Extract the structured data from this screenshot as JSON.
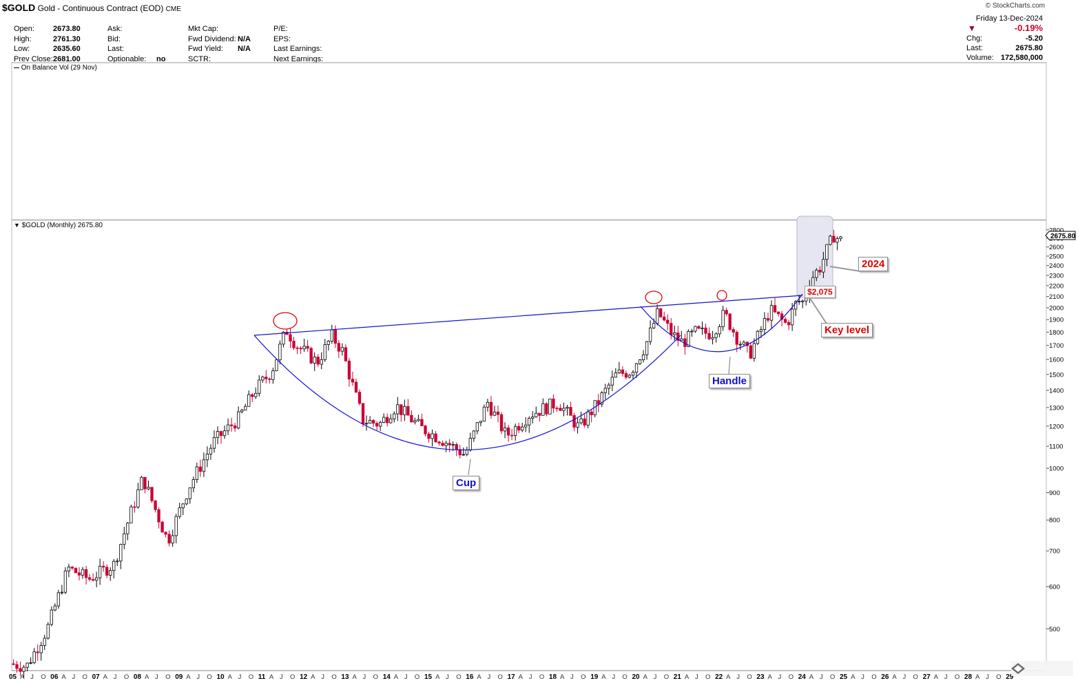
{
  "header": {
    "symbol": "$GOLD",
    "title": "Gold - Continuous Contract (EOD)",
    "exchange": "CME",
    "brand": "© StockCharts.com"
  },
  "quote": {
    "open_label": "Open:",
    "open": "2673.80",
    "high_label": "High:",
    "high": "2761.30",
    "low_label": "Low:",
    "low": "2635.60",
    "prev_label": "Prev Close:",
    "prev": "2681.00",
    "ask_label": "Ask:",
    "bid_label": "Bid:",
    "last_label": "Last:",
    "optionable_label": "Optionable:",
    "optionable": "no",
    "mktcap_label": "Mkt Cap:",
    "fwddiv_label": "Fwd Dividend:",
    "fwddiv": "N/A",
    "fwdyield_label": "Fwd Yield:",
    "fwdyield": "N/A",
    "sctr_label": "SCTR:",
    "pe_label": "P/E:",
    "eps_label": "EPS:",
    "lastearn_label": "Last Earnings:",
    "nextearn_label": "Next Earnings:"
  },
  "summary": {
    "date": "Friday  13-Dec-2024",
    "pct_change": "-0.19%",
    "chg_label": "Chg:",
    "chg": "-5.20",
    "last_label": "Last:",
    "last": "2675.80",
    "volume_label": "Volume:",
    "volume": "172,580,000",
    "down_color": "#b0002a"
  },
  "panels": {
    "obv_label": "On Balance Vol (29 Nov)",
    "price_label": "$GOLD (Monthly) 2675.80",
    "last_tag": "2675.80"
  },
  "chart_data": {
    "type": "candlestick",
    "title": "$GOLD (Monthly)",
    "scale": "log",
    "ylim": [
      420,
      2900
    ],
    "y_ticks": [
      500,
      600,
      700,
      800,
      900,
      1000,
      1100,
      1200,
      1300,
      1400,
      1500,
      1600,
      1700,
      1800,
      1900,
      2000,
      2100,
      2200,
      2300,
      2400,
      2500,
      2600,
      2700,
      2800
    ],
    "x_year_labels": [
      "05",
      "06",
      "07",
      "08",
      "09",
      "10",
      "11",
      "12",
      "13",
      "14",
      "15",
      "16",
      "17",
      "18",
      "19",
      "20",
      "21",
      "22",
      "23",
      "24",
      "25",
      "26",
      "27",
      "28",
      "29"
    ],
    "x_month_labels": [
      "A",
      "J",
      "O"
    ],
    "anchors": [
      {
        "t": 2005.0,
        "p": 430
      },
      {
        "t": 2005.4,
        "p": 425
      },
      {
        "t": 2005.9,
        "p": 500
      },
      {
        "t": 2006.4,
        "p": 650
      },
      {
        "t": 2006.9,
        "p": 620
      },
      {
        "t": 2007.5,
        "p": 660
      },
      {
        "t": 2007.9,
        "p": 820
      },
      {
        "t": 2008.2,
        "p": 960
      },
      {
        "t": 2008.8,
        "p": 730
      },
      {
        "t": 2009.3,
        "p": 920
      },
      {
        "t": 2009.9,
        "p": 1120
      },
      {
        "t": 2010.5,
        "p": 1240
      },
      {
        "t": 2010.9,
        "p": 1400
      },
      {
        "t": 2011.3,
        "p": 1520
      },
      {
        "t": 2011.65,
        "p": 1820
      },
      {
        "t": 2011.9,
        "p": 1700
      },
      {
        "t": 2012.4,
        "p": 1580
      },
      {
        "t": 2012.75,
        "p": 1770
      },
      {
        "t": 2013.0,
        "p": 1660
      },
      {
        "t": 2013.5,
        "p": 1230
      },
      {
        "t": 2013.9,
        "p": 1210
      },
      {
        "t": 2014.3,
        "p": 1310
      },
      {
        "t": 2014.9,
        "p": 1190
      },
      {
        "t": 2015.5,
        "p": 1120
      },
      {
        "t": 2015.95,
        "p": 1060
      },
      {
        "t": 2016.5,
        "p": 1330
      },
      {
        "t": 2016.95,
        "p": 1150
      },
      {
        "t": 2017.5,
        "p": 1260
      },
      {
        "t": 2017.9,
        "p": 1300
      },
      {
        "t": 2018.2,
        "p": 1330
      },
      {
        "t": 2018.7,
        "p": 1190
      },
      {
        "t": 2019.1,
        "p": 1310
      },
      {
        "t": 2019.6,
        "p": 1500
      },
      {
        "t": 2019.95,
        "p": 1520
      },
      {
        "t": 2020.3,
        "p": 1700
      },
      {
        "t": 2020.6,
        "p": 1960
      },
      {
        "t": 2020.95,
        "p": 1780
      },
      {
        "t": 2021.2,
        "p": 1720
      },
      {
        "t": 2021.5,
        "p": 1800
      },
      {
        "t": 2021.9,
        "p": 1790
      },
      {
        "t": 2022.2,
        "p": 1950
      },
      {
        "t": 2022.5,
        "p": 1760
      },
      {
        "t": 2022.8,
        "p": 1630
      },
      {
        "t": 2023.3,
        "p": 1980
      },
      {
        "t": 2023.7,
        "p": 1860
      },
      {
        "t": 2023.95,
        "p": 2060
      },
      {
        "t": 2024.1,
        "p": 2050
      },
      {
        "t": 2024.25,
        "p": 2250
      },
      {
        "t": 2024.5,
        "p": 2380
      },
      {
        "t": 2024.7,
        "p": 2600
      },
      {
        "t": 2024.85,
        "p": 2750
      },
      {
        "t": 2024.95,
        "p": 2676
      }
    ],
    "annotations": {
      "cup": "Cup",
      "handle": "Handle",
      "key_level": "Key level",
      "year": "2024",
      "level_price": "$2,075"
    }
  }
}
